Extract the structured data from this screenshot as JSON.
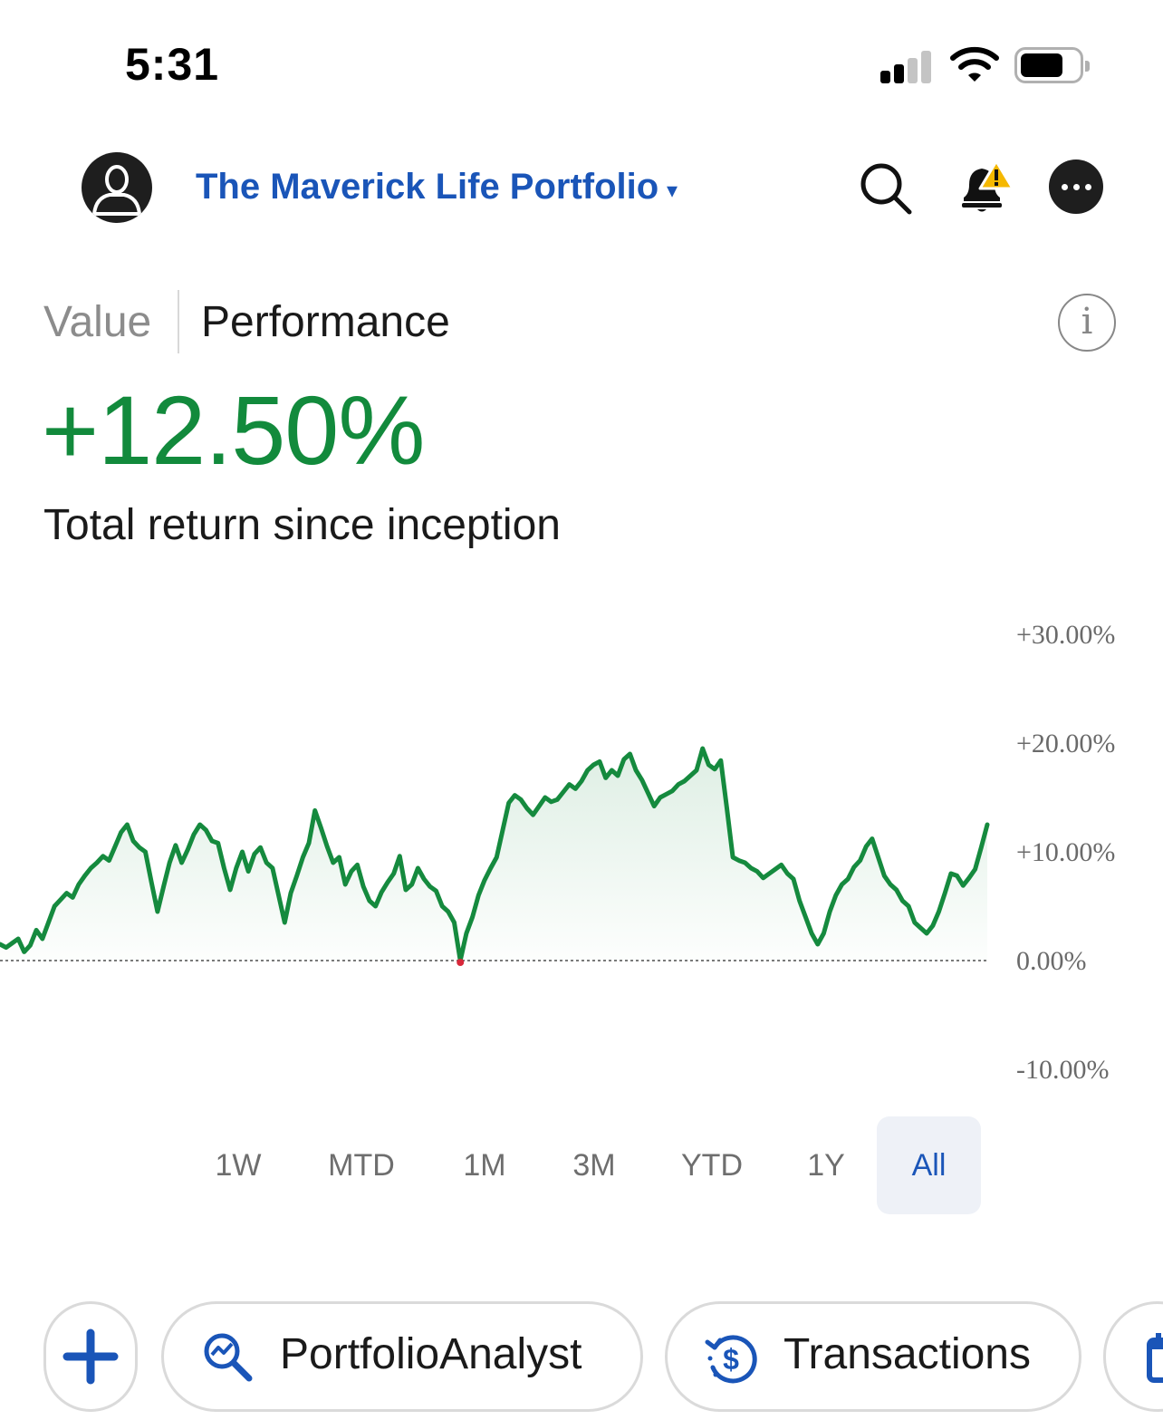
{
  "status_bar": {
    "time": "5:31"
  },
  "header": {
    "portfolio_name": "The Maverick Life Portfolio",
    "caret": "▾",
    "icons": [
      "user-icon",
      "search-icon",
      "bell-alert-icon",
      "more-icon"
    ]
  },
  "tabs": {
    "value": "Value",
    "performance": "Performance",
    "active": "performance"
  },
  "info_glyph": "i",
  "summary": {
    "return_value": "+12.50%",
    "return_label": "Total return since inception"
  },
  "chart_data": {
    "type": "area",
    "ylim": [
      -10,
      30
    ],
    "y_ticks": [
      "+30.00%",
      "+20.00%",
      "+10.00%",
      "0.00%",
      "-10.00%"
    ],
    "y_tick_values": [
      30,
      20,
      10,
      0,
      -10
    ],
    "series": [
      {
        "values": [
          1.5,
          1.2,
          1.6,
          2.0,
          0.8,
          1.4,
          2.8,
          2.0,
          3.5,
          5.0,
          5.6,
          6.2,
          5.8,
          7.0,
          7.8,
          8.5,
          9.0,
          9.6,
          9.2,
          10.5,
          11.8,
          12.5,
          11.0,
          10.4,
          10.0,
          7.2,
          4.5,
          6.8,
          9.0,
          10.6,
          9.0,
          10.2,
          11.6,
          12.5,
          12.0,
          11.0,
          10.8,
          8.5,
          6.5,
          8.5,
          10.0,
          8.2,
          9.8,
          10.4,
          9.0,
          8.5,
          6.0,
          3.5,
          6.2,
          7.8,
          9.5,
          10.8,
          13.8,
          12.2,
          10.5,
          9.0,
          9.5,
          7.0,
          8.2,
          8.8,
          6.8,
          5.5,
          5.0,
          6.3,
          7.2,
          8.0,
          9.6,
          6.5,
          7.0,
          8.5,
          7.5,
          6.8,
          6.4,
          5.0,
          4.5,
          3.5,
          0.0,
          2.5,
          4.0,
          6.0,
          7.4,
          8.5,
          9.5,
          12.0,
          14.5,
          15.2,
          14.8,
          14.0,
          13.4,
          14.2,
          15.0,
          14.6,
          14.8,
          15.5,
          16.2,
          15.8,
          16.5,
          17.5,
          18.0,
          18.3,
          16.8,
          17.5,
          17.0,
          18.5,
          19.0,
          17.5,
          16.6,
          15.4,
          14.2,
          15.0,
          15.3,
          15.6,
          16.2,
          16.5,
          17.0,
          17.5,
          19.5,
          18.0,
          17.6,
          18.4,
          14.0,
          9.5,
          9.2,
          9.0,
          8.5,
          8.2,
          7.6,
          8.0,
          8.4,
          8.8,
          8.0,
          7.5,
          5.5,
          4.0,
          2.5,
          1.5,
          2.5,
          4.5,
          6.0,
          7.0,
          7.5,
          8.6,
          9.2,
          10.5,
          11.2,
          9.5,
          7.8,
          7.0,
          6.5,
          5.5,
          5.0,
          3.5,
          3.0,
          2.5,
          3.2,
          4.5,
          6.2,
          8.0,
          7.8,
          6.9,
          7.6,
          8.4,
          10.4,
          12.5
        ]
      }
    ],
    "grid": false,
    "baseline": 0
  },
  "ranges": [
    {
      "label": "1W",
      "active": false
    },
    {
      "label": "MTD",
      "active": false
    },
    {
      "label": "1M",
      "active": false
    },
    {
      "label": "3M",
      "active": false
    },
    {
      "label": "YTD",
      "active": false
    },
    {
      "label": "1Y",
      "active": false
    },
    {
      "label": "All",
      "active": true
    }
  ],
  "actions": {
    "add_icon": "plus-icon",
    "portfolio_analyst": "PortfolioAnalyst",
    "transactions": "Transactions"
  },
  "colors": {
    "accent_blue": "#1a55b8",
    "positive_green": "#128a3c",
    "chart_line": "#158a3e",
    "low_marker": "#d8283a"
  }
}
